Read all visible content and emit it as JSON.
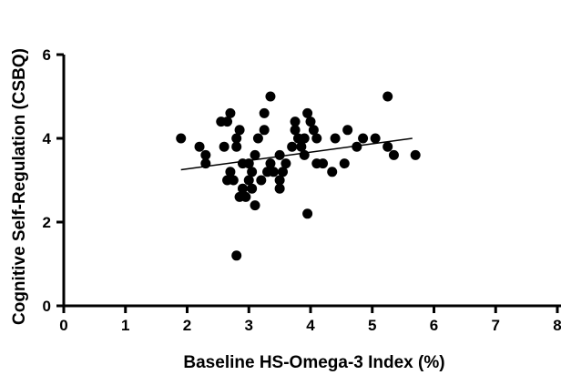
{
  "chart_data": {
    "type": "scatter",
    "xlabel": "Baseline HS-Omega-3 Index (%)",
    "ylabel": "Cognitive Self-Regulation (CSBQ)",
    "xlim": [
      0,
      8
    ],
    "ylim": [
      0,
      6
    ],
    "x_ticks": [
      "0",
      "1",
      "2",
      "3",
      "4",
      "5",
      "6",
      "7",
      "8"
    ],
    "y_ticks": [
      "0",
      "2",
      "4",
      "6"
    ],
    "grid": false,
    "marker_color": "#000000",
    "points": [
      {
        "x": 1.9,
        "y": 4.0
      },
      {
        "x": 2.2,
        "y": 3.8
      },
      {
        "x": 2.3,
        "y": 3.6
      },
      {
        "x": 2.3,
        "y": 3.4
      },
      {
        "x": 2.55,
        "y": 4.4
      },
      {
        "x": 2.6,
        "y": 3.8
      },
      {
        "x": 2.65,
        "y": 4.4
      },
      {
        "x": 2.7,
        "y": 4.6
      },
      {
        "x": 2.7,
        "y": 3.2
      },
      {
        "x": 2.65,
        "y": 3.0
      },
      {
        "x": 2.75,
        "y": 3.0
      },
      {
        "x": 2.8,
        "y": 4.0
      },
      {
        "x": 2.8,
        "y": 3.8
      },
      {
        "x": 2.85,
        "y": 4.2
      },
      {
        "x": 2.85,
        "y": 2.6
      },
      {
        "x": 2.9,
        "y": 3.4
      },
      {
        "x": 2.9,
        "y": 2.8
      },
      {
        "x": 2.95,
        "y": 2.6
      },
      {
        "x": 3.0,
        "y": 3.4
      },
      {
        "x": 3.0,
        "y": 3.0
      },
      {
        "x": 3.05,
        "y": 2.8
      },
      {
        "x": 3.05,
        "y": 3.2
      },
      {
        "x": 3.1,
        "y": 2.4
      },
      {
        "x": 3.1,
        "y": 3.6
      },
      {
        "x": 3.15,
        "y": 4.0
      },
      {
        "x": 3.2,
        "y": 3.0
      },
      {
        "x": 3.25,
        "y": 4.6
      },
      {
        "x": 3.25,
        "y": 4.2
      },
      {
        "x": 3.3,
        "y": 3.2
      },
      {
        "x": 3.35,
        "y": 5.0
      },
      {
        "x": 3.35,
        "y": 3.4
      },
      {
        "x": 3.4,
        "y": 3.2
      },
      {
        "x": 3.5,
        "y": 3.6
      },
      {
        "x": 3.5,
        "y": 3.0
      },
      {
        "x": 3.5,
        "y": 2.8
      },
      {
        "x": 3.55,
        "y": 3.2
      },
      {
        "x": 3.6,
        "y": 3.4
      },
      {
        "x": 3.7,
        "y": 3.8
      },
      {
        "x": 3.75,
        "y": 4.4
      },
      {
        "x": 3.75,
        "y": 4.2
      },
      {
        "x": 3.8,
        "y": 4.0
      },
      {
        "x": 3.85,
        "y": 3.8
      },
      {
        "x": 3.9,
        "y": 3.6
      },
      {
        "x": 3.9,
        "y": 4.0
      },
      {
        "x": 3.95,
        "y": 4.6
      },
      {
        "x": 3.95,
        "y": 2.2
      },
      {
        "x": 4.0,
        "y": 4.4
      },
      {
        "x": 4.05,
        "y": 4.2
      },
      {
        "x": 4.1,
        "y": 4.0
      },
      {
        "x": 4.1,
        "y": 3.4
      },
      {
        "x": 4.2,
        "y": 3.4
      },
      {
        "x": 4.35,
        "y": 3.2
      },
      {
        "x": 4.4,
        "y": 4.0
      },
      {
        "x": 4.55,
        "y": 3.4
      },
      {
        "x": 4.6,
        "y": 4.2
      },
      {
        "x": 4.75,
        "y": 3.8
      },
      {
        "x": 4.85,
        "y": 4.0
      },
      {
        "x": 5.05,
        "y": 4.0
      },
      {
        "x": 5.25,
        "y": 5.0
      },
      {
        "x": 5.25,
        "y": 3.8
      },
      {
        "x": 5.35,
        "y": 3.6
      },
      {
        "x": 5.7,
        "y": 3.6
      },
      {
        "x": 2.8,
        "y": 1.2
      }
    ],
    "trendline": {
      "x": [
        1.9,
        5.65
      ],
      "y": [
        3.25,
        4.0
      ]
    }
  }
}
